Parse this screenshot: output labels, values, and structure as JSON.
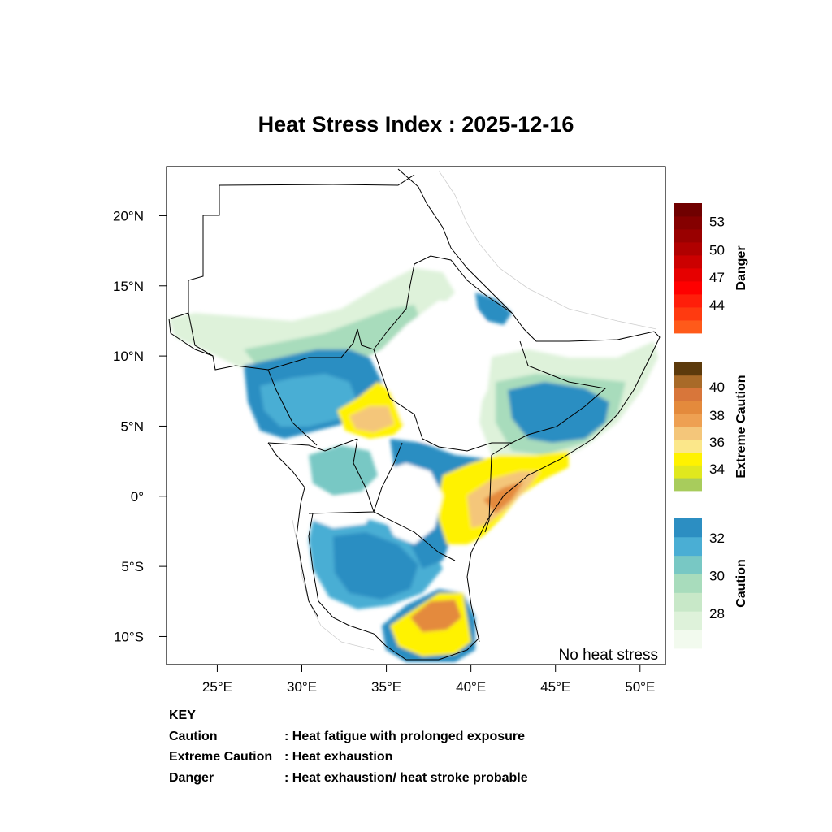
{
  "title": "Heat Stress Index : 2025-12-16",
  "map": {
    "lon_range": [
      22,
      51.5
    ],
    "lat_range": [
      -12,
      23.5
    ],
    "x_ticks": [
      {
        "lon": 25,
        "label": "25°E"
      },
      {
        "lon": 30,
        "label": "30°E"
      },
      {
        "lon": 35,
        "label": "35°E"
      },
      {
        "lon": 40,
        "label": "40°E"
      },
      {
        "lon": 45,
        "label": "45°E"
      },
      {
        "lon": 50,
        "label": "50°E"
      }
    ],
    "y_ticks": [
      {
        "lat": 20,
        "label": "20°N"
      },
      {
        "lat": 15,
        "label": "15°N"
      },
      {
        "lat": 10,
        "label": "10°N"
      },
      {
        "lat": 5,
        "label": "5°N"
      },
      {
        "lat": 0,
        "label": "0°"
      },
      {
        "lat": -5,
        "label": "5°S"
      },
      {
        "lat": -10,
        "label": "10°S"
      }
    ],
    "no_stress_label": "No heat stress"
  },
  "legends": [
    {
      "name": "Danger",
      "title": "Danger",
      "colors": [
        "#ff5a1a",
        "#ff3a10",
        "#ff1e0a",
        "#ff0000",
        "#e60000",
        "#cc0000",
        "#b00000",
        "#990000",
        "#850000",
        "#700000"
      ],
      "labels": [
        {
          "value": "44",
          "pos": 0.22
        },
        {
          "value": "47",
          "pos": 0.43
        },
        {
          "value": "50",
          "pos": 0.64
        },
        {
          "value": "53",
          "pos": 0.86
        }
      ]
    },
    {
      "name": "Extreme Caution",
      "title": "Extreme Caution",
      "colors": [
        "#a8cc5c",
        "#e0e81e",
        "#fff200",
        "#fbe78a",
        "#f4c67a",
        "#eea052",
        "#e48a3c",
        "#d8763a",
        "#a86a28",
        "#5c3a0c"
      ],
      "labels": [
        {
          "value": "34",
          "pos": 0.17
        },
        {
          "value": "36",
          "pos": 0.38
        },
        {
          "value": "38",
          "pos": 0.59
        },
        {
          "value": "40",
          "pos": 0.81
        }
      ]
    },
    {
      "name": "Caution",
      "title": "Caution",
      "colors": [
        "#f2faee",
        "#def2da",
        "#c8e8c8",
        "#a8dcbc",
        "#78c8c4",
        "#4aaed4",
        "#2c8ec2"
      ],
      "labels": [
        {
          "value": "28",
          "pos": 0.27
        },
        {
          "value": "30",
          "pos": 0.56
        },
        {
          "value": "32",
          "pos": 0.85
        }
      ]
    }
  ],
  "key": {
    "heading": "KEY",
    "rows": [
      {
        "term": "Caution",
        "desc": ": Heat fatigue with prolonged exposure"
      },
      {
        "term": "Extreme Caution",
        "desc": " : Heat exhaustion"
      },
      {
        "term": "Danger",
        "desc": ": Heat exhaustion/ heat stroke probable"
      }
    ]
  },
  "colors": {
    "caution_dark": "#2c8ec2",
    "caution_mid": "#4aaed4",
    "caution_light": "#a8dcbc",
    "caution_pale": "#def2da",
    "extreme_yellow": "#fff200",
    "extreme_tan": "#f4c67a",
    "extreme_orange": "#e48a3c",
    "border": "#000000"
  }
}
